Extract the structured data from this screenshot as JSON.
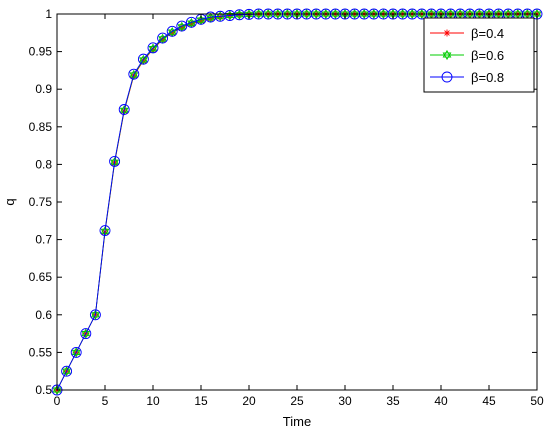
{
  "chart_data": {
    "type": "line",
    "title": "",
    "xlabel": "Time",
    "ylabel": "q",
    "xlim": [
      0,
      50
    ],
    "ylim": [
      0.5,
      1
    ],
    "xticks": [
      0,
      5,
      10,
      15,
      20,
      25,
      30,
      35,
      40,
      45,
      50
    ],
    "yticks": [
      0.5,
      0.55,
      0.6,
      0.65,
      0.7,
      0.75,
      0.8,
      0.85,
      0.9,
      0.95,
      1
    ],
    "xtick_labels": [
      "0",
      "5",
      "10",
      "15",
      "20",
      "25",
      "30",
      "35",
      "40",
      "45",
      "50"
    ],
    "ytick_labels": [
      "0.5",
      "0.55",
      "0.6",
      "0.65",
      "0.7",
      "0.75",
      "0.8",
      "0.85",
      "0.9",
      "0.95",
      "1"
    ],
    "grid": false,
    "legend_position": "top-right",
    "x": [
      0,
      1,
      2,
      3,
      4,
      5,
      6,
      7,
      8,
      9,
      10,
      11,
      12,
      13,
      14,
      15,
      16,
      17,
      18,
      19,
      20,
      21,
      22,
      23,
      24,
      25,
      26,
      27,
      28,
      29,
      30,
      31,
      32,
      33,
      34,
      35,
      36,
      37,
      38,
      39,
      40,
      41,
      42,
      43,
      44,
      45,
      46,
      47,
      48,
      49,
      50
    ],
    "series": [
      {
        "name": "β=0.4",
        "color": "#ff0000",
        "marker": "asterisk",
        "values": [
          0.5,
          0.525,
          0.55,
          0.575,
          0.6,
          0.71,
          0.802,
          0.871,
          0.918,
          0.938,
          0.953,
          0.966,
          0.975,
          0.982,
          0.987,
          0.991,
          0.994,
          0.996,
          0.998,
          0.999,
          0.9995,
          1,
          1,
          1,
          1,
          1,
          1,
          1,
          1,
          1,
          1,
          1,
          1,
          1,
          1,
          1,
          1,
          1,
          1,
          1,
          1,
          1,
          1,
          1,
          1,
          1,
          1,
          1,
          1,
          1,
          1
        ]
      },
      {
        "name": "β=0.6",
        "color": "#00cc00",
        "marker": "hexagram",
        "values": [
          0.5,
          0.525,
          0.55,
          0.575,
          0.6,
          0.711,
          0.803,
          0.872,
          0.919,
          0.939,
          0.954,
          0.967,
          0.976,
          0.983,
          0.988,
          0.992,
          0.995,
          0.997,
          0.998,
          0.999,
          0.9995,
          1,
          1,
          1,
          1,
          1,
          1,
          1,
          1,
          1,
          1,
          1,
          1,
          1,
          1,
          1,
          1,
          1,
          1,
          1,
          1,
          1,
          1,
          1,
          1,
          1,
          1,
          1,
          1,
          1,
          1
        ]
      },
      {
        "name": "β=0.8",
        "color": "#0000ff",
        "marker": "circle",
        "values": [
          0.5,
          0.525,
          0.55,
          0.575,
          0.6,
          0.712,
          0.804,
          0.873,
          0.92,
          0.94,
          0.955,
          0.968,
          0.977,
          0.984,
          0.989,
          0.993,
          0.996,
          0.997,
          0.998,
          0.999,
          0.9995,
          1,
          1,
          1,
          1,
          1,
          1,
          1,
          1,
          1,
          1,
          1,
          1,
          1,
          1,
          1,
          1,
          1,
          1,
          1,
          1,
          1,
          1,
          1,
          1,
          1,
          1,
          1,
          1,
          1,
          1
        ]
      }
    ]
  }
}
